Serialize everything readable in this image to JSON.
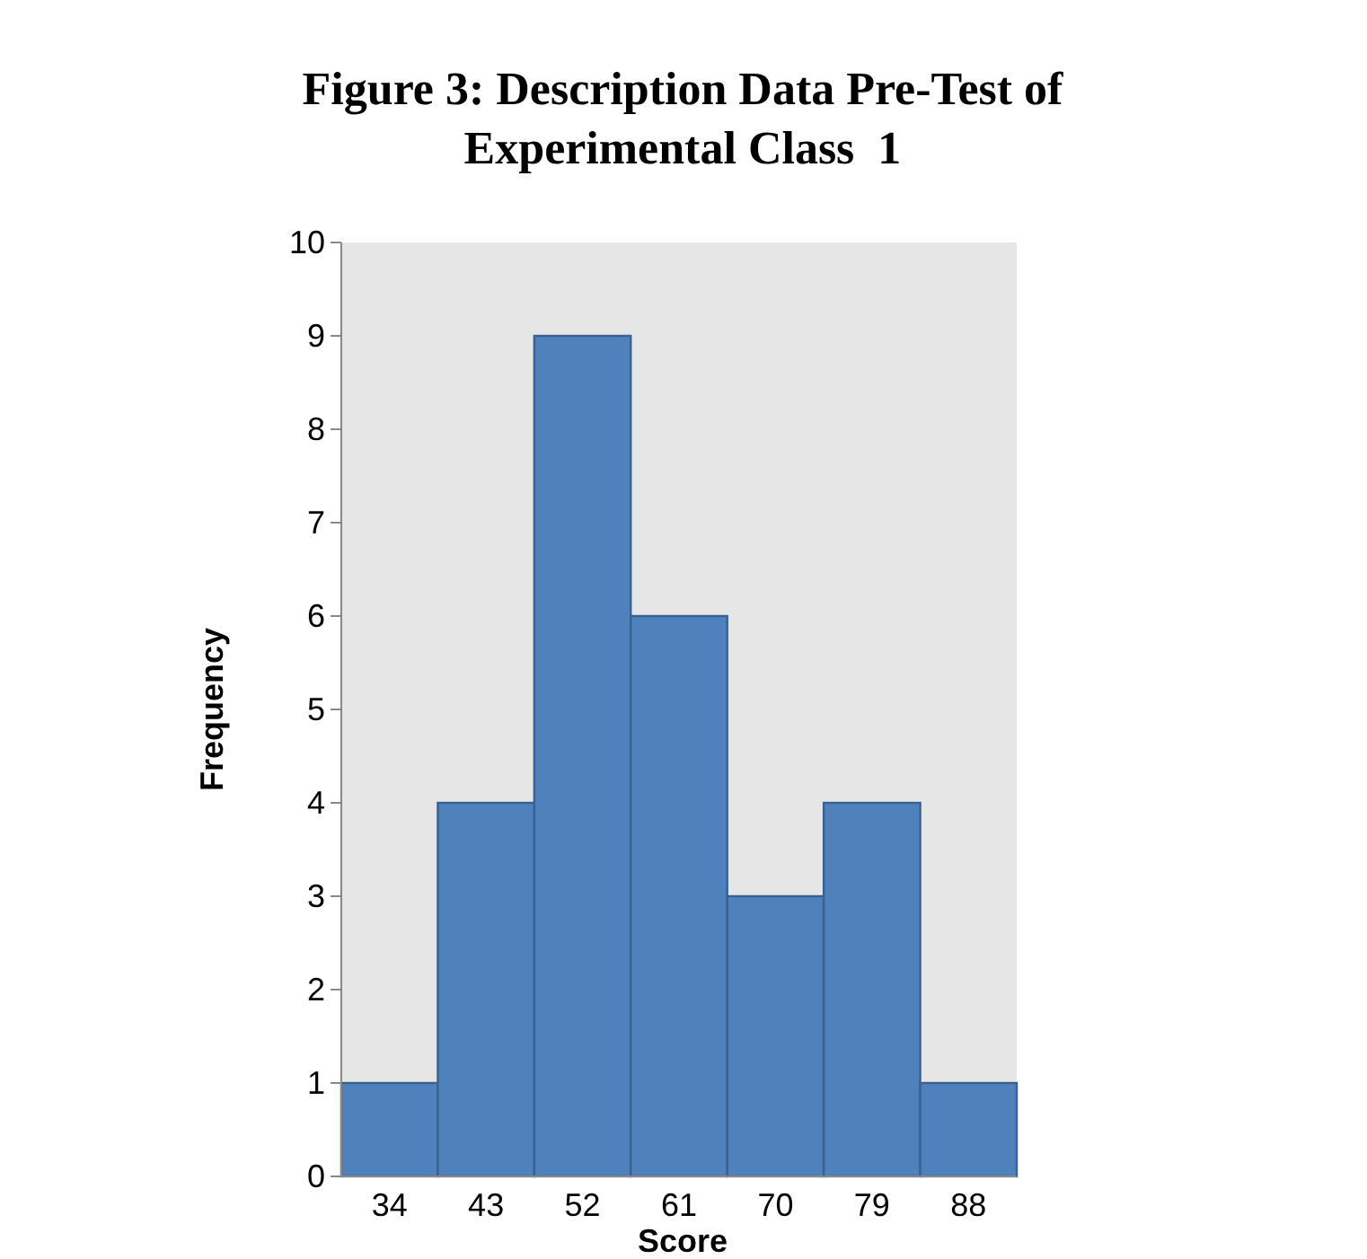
{
  "chart_data": {
    "type": "bar",
    "title": "Figure 3: Description Data Pre-Test of Experimental Class  1",
    "xlabel": "Score",
    "ylabel": "Frequency",
    "categories": [
      "34",
      "43",
      "52",
      "61",
      "70",
      "79",
      "88"
    ],
    "values": [
      1,
      4,
      9,
      6,
      3,
      4,
      1
    ],
    "color": "#4f81bd",
    "ylim": [
      0,
      10
    ],
    "yticks": [
      0,
      1,
      2,
      3,
      4,
      5,
      6,
      7,
      8,
      9,
      10
    ],
    "grid": false
  }
}
